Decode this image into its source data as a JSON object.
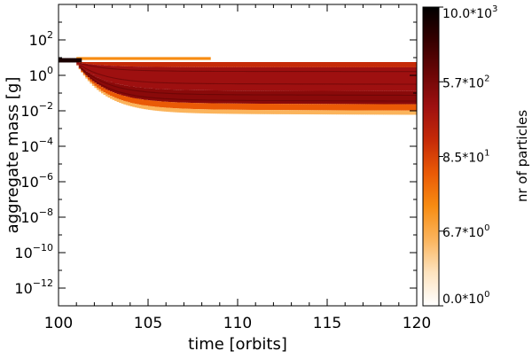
{
  "chart_data": {
    "type": "heatmap",
    "xlabel": "time [orbits]",
    "ylabel": "aggregate mass [g]",
    "colorbar_label": "nr of particles",
    "xlim": [
      100,
      120
    ],
    "ylim_log10": [
      -13,
      4
    ],
    "y_scale": "log",
    "x_ticks": [
      {
        "value": 100,
        "label": "100"
      },
      {
        "value": 105,
        "label": "105"
      },
      {
        "value": 110,
        "label": "110"
      },
      {
        "value": 115,
        "label": "115"
      },
      {
        "value": 120,
        "label": "120"
      }
    ],
    "y_ticks": [
      {
        "exp": 2,
        "mant": "10",
        "sup": "2"
      },
      {
        "exp": 0,
        "mant": "10",
        "sup": "0"
      },
      {
        "exp": -2,
        "mant": "10",
        "sup": "−2"
      },
      {
        "exp": -4,
        "mant": "10",
        "sup": "−4"
      },
      {
        "exp": -6,
        "mant": "10",
        "sup": "−6"
      },
      {
        "exp": -8,
        "mant": "10",
        "sup": "−8"
      },
      {
        "exp": -10,
        "mant": "10",
        "sup": "−10"
      },
      {
        "exp": -12,
        "mant": "10",
        "sup": "−12"
      }
    ],
    "colorbar_ticks": [
      {
        "frac": 1.0,
        "mant": "10.0*10",
        "sup": "3"
      },
      {
        "frac": 0.75,
        "mant": "5.7*10",
        "sup": "2"
      },
      {
        "frac": 0.5,
        "mant": "8.5*10",
        "sup": "1"
      },
      {
        "frac": 0.25,
        "mant": "6.7*10",
        "sup": "0"
      },
      {
        "frac": 0.0,
        "mant": "0.0*10",
        "sup": "0"
      }
    ],
    "colorscale": [
      "#ffffff",
      "#fde3bf",
      "#fbb45c",
      "#f78c12",
      "#ea5a06",
      "#c52a08",
      "#9e1010",
      "#6b0606",
      "#350000",
      "#000000"
    ],
    "distribution": {
      "initial_mass_log10": 0.85,
      "initial_until_orbit": 101,
      "upper_edge_log10": 0.75,
      "lower_edge_final_log10": -2.15,
      "stray_particle_band": {
        "until_orbit": 108.5,
        "log10": 0.95
      }
    }
  }
}
